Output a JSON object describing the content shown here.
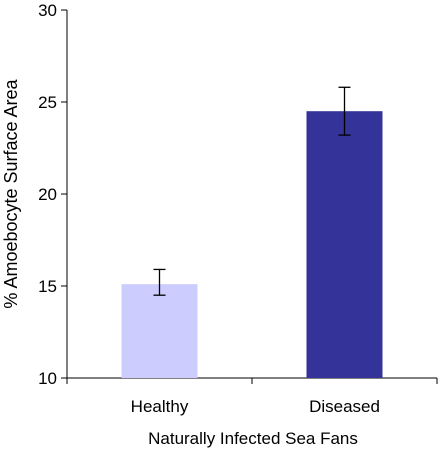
{
  "chart_data": {
    "type": "bar",
    "title": "",
    "xlabel": "Naturally Infected Sea Fans",
    "ylabel": "% Amoebocyte Surface Area",
    "categories": [
      "Healthy",
      "Diseased"
    ],
    "values": [
      15.1,
      24.5
    ],
    "error_low": [
      14.5,
      23.2
    ],
    "error_high": [
      15.9,
      25.8
    ],
    "bar_colors": [
      "#CCCCFF",
      "#333399"
    ],
    "ylim": [
      10,
      30
    ],
    "yticks": [
      10,
      15,
      20,
      25,
      30
    ],
    "ytick_labels": [
      "10",
      "15",
      "20",
      "25",
      "30"
    ],
    "grid": false,
    "legend": "none"
  }
}
